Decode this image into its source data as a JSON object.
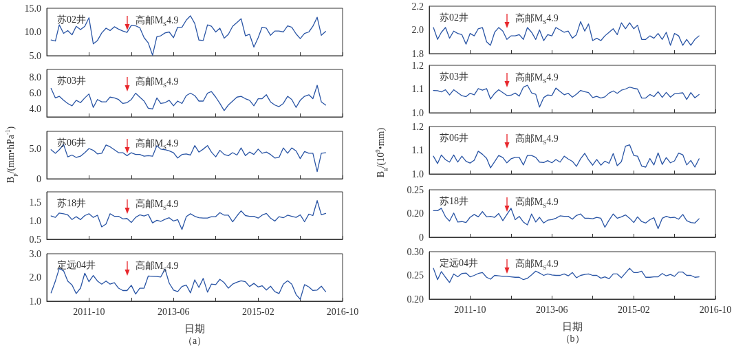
{
  "chart_data": [
    {
      "type": "line",
      "title": "苏02井",
      "marker": "none",
      "line_style": "solid",
      "tick_labels": "y",
      "x": [
        "2011-01",
        "2011-02",
        "2011-03",
        "2011-04",
        "2011-05",
        "2011-06",
        "2011-07",
        "2011-08",
        "2011-09",
        "2011-10",
        "2011-11",
        "2011-12",
        "2012-01",
        "2012-02",
        "2012-03",
        "2012-04",
        "2012-05",
        "2012-06",
        "2012-07",
        "2012-08",
        "2012-09",
        "2012-10",
        "2012-11",
        "2012-12",
        "2013-01",
        "2013-02",
        "2013-03",
        "2013-04",
        "2013-05",
        "2013-06",
        "2013-07",
        "2013-08",
        "2013-09",
        "2013-10",
        "2013-11",
        "2013-12",
        "2014-01",
        "2014-02",
        "2014-03",
        "2014-04",
        "2014-05",
        "2014-06",
        "2014-07",
        "2014-08",
        "2014-09",
        "2014-10",
        "2014-11",
        "2014-12",
        "2015-01",
        "2015-02",
        "2015-03",
        "2015-04",
        "2015-05",
        "2015-06",
        "2015-07",
        "2015-08",
        "2015-09",
        "2015-10",
        "2015-11",
        "2015-12",
        "2016-01",
        "2016-02",
        "2016-03",
        "2016-04",
        "2016-05",
        "2016-06"
      ],
      "series": [
        {
          "color": "#2a55a5",
          "values": [
            8.3,
            8.1,
            11.5,
            9.7,
            10.3,
            9.4,
            11.2,
            10.5,
            11.2,
            13.0,
            7.5,
            8.2,
            9.8,
            10.8,
            10.3,
            11.1,
            10.6,
            10.2,
            9.9,
            11.4,
            11.3,
            10.9,
            8.8,
            7.7,
            5.1,
            9.0,
            9.2,
            9.8,
            10.0,
            8.8,
            11.0,
            11.0,
            12.5,
            13.4,
            11.8,
            8.3,
            8.2,
            11.5,
            11.2,
            10.0,
            10.8,
            8.7,
            9.5,
            11.2,
            12.0,
            12.8,
            9.2,
            9.5,
            6.8,
            8.8,
            11.0,
            10.8,
            9.3,
            10.2,
            10.2,
            10.0,
            11.3,
            11.0,
            9.6,
            8.6,
            9.7,
            10.0,
            11.2,
            13.1,
            9.3,
            10.1
          ]
        }
      ],
      "xlim": [
        "2010-12",
        "2016-10"
      ],
      "xticks": [
        "2011-10",
        {
          "value": "2012-08",
          "label": null
        },
        "2013-06",
        {
          "value": "2014-04",
          "label": null
        },
        "2015-02",
        {
          "value": "2015-12",
          "label": null
        },
        "2016-10"
      ],
      "ylim": [
        5,
        15
      ],
      "yticks": [
        {
          "value": 5,
          "label": "5.0"
        },
        {
          "value": 10,
          "label": "10.0"
        },
        {
          "value": 15,
          "label": "15.0"
        }
      ],
      "ref_lines": [
        {
          "axis": "x",
          "value": "2012-07",
          "label": "高邮M$_{S}$4.9",
          "color": "#e8262b"
        }
      ]
    },
    {
      "type": "line",
      "title": "苏03井",
      "marker": "none",
      "line_style": "solid",
      "tick_labels": "y",
      "x": [
        "2011-01",
        "2011-02",
        "2011-03",
        "2011-04",
        "2011-05",
        "2011-06",
        "2011-07",
        "2011-08",
        "2011-09",
        "2011-10",
        "2011-11",
        "2011-12",
        "2012-01",
        "2012-02",
        "2012-03",
        "2012-04",
        "2012-05",
        "2012-06",
        "2012-07",
        "2012-08",
        "2012-09",
        "2012-10",
        "2012-11",
        "2012-12",
        "2013-01",
        "2013-02",
        "2013-03",
        "2013-04",
        "2013-05",
        "2013-06",
        "2013-07",
        "2013-08",
        "2013-09",
        "2013-10",
        "2013-11",
        "2013-12",
        "2014-01",
        "2014-02",
        "2014-03",
        "2014-04",
        "2014-05",
        "2014-06",
        "2014-07",
        "2014-08",
        "2014-09",
        "2014-10",
        "2014-11",
        "2014-12",
        "2015-01",
        "2015-02",
        "2015-03",
        "2015-04",
        "2015-05",
        "2015-06",
        "2015-07",
        "2015-08",
        "2015-09",
        "2015-10",
        "2015-11",
        "2015-12",
        "2016-01",
        "2016-02",
        "2016-03",
        "2016-04",
        "2016-05",
        "2016-06"
      ],
      "series": [
        {
          "color": "#2a55a5",
          "values": [
            6.6,
            5.4,
            5.6,
            5.1,
            4.7,
            4.4,
            5.1,
            4.8,
            5.4,
            5.9,
            4.2,
            5.2,
            4.9,
            4.9,
            5.5,
            5.4,
            5.2,
            4.7,
            4.8,
            5.2,
            6.0,
            5.5,
            5.0,
            4.1,
            4.0,
            5.4,
            4.7,
            4.8,
            5.1,
            4.4,
            5.0,
            4.7,
            5.7,
            6.0,
            5.7,
            5.0,
            5.0,
            6.0,
            6.2,
            5.5,
            4.7,
            3.8,
            4.5,
            5.0,
            5.5,
            5.6,
            5.3,
            5.1,
            4.4,
            5.3,
            5.3,
            5.8,
            4.9,
            4.5,
            4.3,
            4.7,
            5.6,
            5.2,
            4.2,
            5.1,
            5.6,
            5.8,
            5.3,
            7.0,
            4.9,
            4.5
          ]
        }
      ],
      "xlim": [
        "2010-12",
        "2016-10"
      ],
      "xticks": [
        "2011-10",
        {
          "value": "2012-08",
          "label": null
        },
        "2013-06",
        {
          "value": "2014-04",
          "label": null
        },
        "2015-02",
        {
          "value": "2015-12",
          "label": null
        },
        "2016-10"
      ],
      "ylim": [
        3,
        9
      ],
      "yticks": [
        {
          "value": 4,
          "label": "4.0"
        },
        {
          "value": 6,
          "label": "6.0"
        },
        {
          "value": 8,
          "label": "8.0"
        }
      ],
      "ref_lines": [
        {
          "axis": "x",
          "value": "2012-07",
          "label": "高邮M$_{S}$4.9",
          "color": "#e8262b"
        }
      ]
    },
    {
      "type": "line",
      "title": "苏06井",
      "ylabel": "B$_{p}$/(mm•hPa$^{-1}$)",
      "marker": "none",
      "line_style": "solid",
      "tick_labels": "y",
      "x": [
        "2011-01",
        "2011-02",
        "2011-03",
        "2011-04",
        "2011-05",
        "2011-06",
        "2011-07",
        "2011-08",
        "2011-09",
        "2011-10",
        "2011-11",
        "2011-12",
        "2012-01",
        "2012-02",
        "2012-03",
        "2012-04",
        "2012-05",
        "2012-06",
        "2012-07",
        "2012-08",
        "2012-09",
        "2012-10",
        "2012-11",
        "2012-12",
        "2013-01",
        "2013-02",
        "2013-03",
        "2013-04",
        "2013-05",
        "2013-06",
        "2013-07",
        "2013-08",
        "2013-09",
        "2013-10",
        "2013-11",
        "2013-12",
        "2014-01",
        "2014-02",
        "2014-03",
        "2014-04",
        "2014-05",
        "2014-06",
        "2014-07",
        "2014-08",
        "2014-09",
        "2014-10",
        "2014-11",
        "2014-12",
        "2015-01",
        "2015-02",
        "2015-03",
        "2015-04",
        "2015-05",
        "2015-06",
        "2015-07",
        "2015-08",
        "2015-09",
        "2015-10",
        "2015-11",
        "2015-12",
        "2016-01",
        "2016-02",
        "2016-03",
        "2016-04",
        "2016-05",
        "2016-06"
      ],
      "series": [
        {
          "color": "#2a55a5",
          "values": [
            4.9,
            4.3,
            4.9,
            5.8,
            3.7,
            4.0,
            3.6,
            3.8,
            4.4,
            5.1,
            4.8,
            4.2,
            4.3,
            5.7,
            5.4,
            4.9,
            4.4,
            4.4,
            3.9,
            4.4,
            4.1,
            4.1,
            3.8,
            3.9,
            3.8,
            5.6,
            5.0,
            4.9,
            4.7,
            4.4,
            3.5,
            4.1,
            4.2,
            4.0,
            5.6,
            4.5,
            5.0,
            5.6,
            4.5,
            3.7,
            4.8,
            4.1,
            3.9,
            4.4,
            4.0,
            5.2,
            3.9,
            4.5,
            4.1,
            5.0,
            4.3,
            4.5,
            4.1,
            3.5,
            3.6,
            5.2,
            4.3,
            5.2,
            4.7,
            3.4,
            4.6,
            4.3,
            4.3,
            1.2,
            4.3,
            4.4
          ]
        }
      ],
      "xlim": [
        "2010-12",
        "2016-10"
      ],
      "xticks": [
        "2011-10",
        {
          "value": "2012-08",
          "label": null
        },
        "2013-06",
        {
          "value": "2014-04",
          "label": null
        },
        "2015-02",
        {
          "value": "2015-12",
          "label": null
        },
        "2016-10"
      ],
      "ylim": [
        0,
        8
      ],
      "yticks": [
        0,
        {
          "value": 5,
          "label": "5.0"
        }
      ],
      "ref_lines": [
        {
          "axis": "x",
          "value": "2012-07",
          "label": "高邮M$_{S}$4.9",
          "color": "#e8262b"
        }
      ]
    },
    {
      "type": "line",
      "title": "苏18井",
      "marker": "none",
      "line_style": "solid",
      "tick_labels": "y",
      "x": [
        "2011-01",
        "2011-02",
        "2011-03",
        "2011-04",
        "2011-05",
        "2011-06",
        "2011-07",
        "2011-08",
        "2011-09",
        "2011-10",
        "2011-11",
        "2011-12",
        "2012-01",
        "2012-02",
        "2012-03",
        "2012-04",
        "2012-05",
        "2012-06",
        "2012-07",
        "2012-08",
        "2012-09",
        "2012-10",
        "2012-11",
        "2012-12",
        "2013-01",
        "2013-02",
        "2013-03",
        "2013-04",
        "2013-05",
        "2013-06",
        "2013-07",
        "2013-08",
        "2013-09",
        "2013-10",
        "2013-11",
        "2013-12",
        "2014-01",
        "2014-02",
        "2014-03",
        "2014-04",
        "2014-05",
        "2014-06",
        "2014-07",
        "2014-08",
        "2014-09",
        "2014-10",
        "2014-11",
        "2014-12",
        "2015-01",
        "2015-02",
        "2015-03",
        "2015-04",
        "2015-05",
        "2015-06",
        "2015-07",
        "2015-08",
        "2015-09",
        "2015-10",
        "2015-11",
        "2015-12",
        "2016-01",
        "2016-02",
        "2016-03",
        "2016-04",
        "2016-05",
        "2016-06"
      ],
      "series": [
        {
          "color": "#2a55a5",
          "values": [
            1.14,
            1.1,
            1.22,
            1.2,
            1.17,
            1.04,
            1.12,
            1.04,
            1.15,
            1.2,
            1.1,
            1.16,
            0.84,
            0.92,
            1.2,
            1.13,
            1.13,
            1.06,
            1.07,
            0.96,
            1.1,
            1.17,
            1.14,
            1.18,
            0.95,
            1.02,
            0.99,
            1.05,
            1.09,
            1.0,
            1.04,
            0.77,
            1.12,
            1.2,
            1.13,
            1.09,
            1.08,
            1.08,
            1.12,
            1.12,
            1.23,
            1.16,
            1.16,
            0.98,
            1.14,
            1.28,
            1.15,
            1.13,
            1.13,
            1.08,
            1.16,
            1.21,
            1.08,
            1.0,
            1.12,
            1.09,
            1.16,
            1.13,
            1.1,
            1.17,
            0.98,
            1.19,
            1.15,
            1.56,
            1.17,
            1.21
          ]
        }
      ],
      "xlim": [
        "2010-12",
        "2016-10"
      ],
      "xticks": [
        "2011-10",
        {
          "value": "2012-08",
          "label": null
        },
        "2013-06",
        {
          "value": "2014-04",
          "label": null
        },
        "2015-02",
        {
          "value": "2015-12",
          "label": null
        },
        "2016-10"
      ],
      "ylim": [
        0.5,
        1.8
      ],
      "yticks": [
        0.5,
        {
          "value": 1,
          "label": "1.0"
        },
        1.5
      ],
      "ref_lines": [
        {
          "axis": "x",
          "value": "2012-07",
          "label": "高邮M$_{S}$4.9",
          "color": "#e8262b"
        }
      ]
    },
    {
      "type": "line",
      "title": "定远04井",
      "xlabel": "日期",
      "marker": "none",
      "line_style": "solid",
      "x": [
        "2011-01",
        "2011-02",
        "2011-03",
        "2011-04",
        "2011-05",
        "2011-06",
        "2011-07",
        "2011-08",
        "2011-09",
        "2011-10",
        "2011-11",
        "2011-12",
        "2012-01",
        "2012-02",
        "2012-03",
        "2012-04",
        "2012-05",
        "2012-06",
        "2012-07",
        "2012-08",
        "2012-09",
        "2012-10",
        "2012-11",
        "2012-12",
        "2013-01",
        "2013-02",
        "2013-03",
        "2013-04",
        "2013-05",
        "2013-06",
        "2013-07",
        "2013-08",
        "2013-09",
        "2013-10",
        "2013-11",
        "2013-12",
        "2014-01",
        "2014-02",
        "2014-03",
        "2014-04",
        "2014-05",
        "2014-06",
        "2014-07",
        "2014-08",
        "2014-09",
        "2014-10",
        "2014-11",
        "2014-12",
        "2015-01",
        "2015-02",
        "2015-03",
        "2015-04",
        "2015-05",
        "2015-06",
        "2015-07",
        "2015-08",
        "2015-09",
        "2015-10",
        "2015-11",
        "2015-12",
        "2016-01",
        "2016-02",
        "2016-03",
        "2016-04",
        "2016-05",
        "2016-06"
      ],
      "series": [
        {
          "color": "#2a55a5",
          "values": [
            1.35,
            1.85,
            2.38,
            2.28,
            1.85,
            1.68,
            1.32,
            1.55,
            2.18,
            1.82,
            2.08,
            1.85,
            1.72,
            1.85,
            1.72,
            1.78,
            1.55,
            1.45,
            1.45,
            1.67,
            1.3,
            1.55,
            1.55,
            2.06,
            2.05,
            2.04,
            2.02,
            2.35,
            1.76,
            1.47,
            1.4,
            1.62,
            1.68,
            1.35,
            1.9,
            1.58,
            1.96,
            1.38,
            1.72,
            1.7,
            1.92,
            1.78,
            1.55,
            1.72,
            1.8,
            1.86,
            1.82,
            1.62,
            1.75,
            1.6,
            1.65,
            1.47,
            1.63,
            1.4,
            1.32,
            1.72,
            1.86,
            1.72,
            1.28,
            1.08,
            1.7,
            1.6,
            1.45,
            1.47,
            1.63,
            1.4
          ]
        }
      ],
      "xlim": [
        "2010-12",
        "2016-10"
      ],
      "xticks": [
        "2011-10",
        {
          "value": "2012-08",
          "label": null
        },
        "2013-06",
        {
          "value": "2014-04",
          "label": null
        },
        "2015-02",
        {
          "value": "2015-12",
          "label": null
        },
        "2016-10"
      ],
      "ylim": [
        1,
        3
      ],
      "yticks": [
        {
          "value": 1,
          "label": "1.0"
        },
        {
          "value": 2,
          "label": "2.0"
        },
        {
          "value": 3,
          "label": "3.0"
        }
      ],
      "ref_lines": [
        {
          "axis": "x",
          "value": "2012-07",
          "label": "高邮M$_{S}$4.9",
          "color": "#e8262b"
        }
      ],
      "annotations": [
        "（a）"
      ]
    },
    {
      "type": "line",
      "title": "苏02井",
      "marker": "none",
      "line_style": "solid",
      "tick_labels": "y",
      "x": [
        "2011-01",
        "2011-02",
        "2011-03",
        "2011-04",
        "2011-05",
        "2011-06",
        "2011-07",
        "2011-08",
        "2011-09",
        "2011-10",
        "2011-11",
        "2011-12",
        "2012-01",
        "2012-02",
        "2012-03",
        "2012-04",
        "2012-05",
        "2012-06",
        "2012-07",
        "2012-08",
        "2012-09",
        "2012-10",
        "2012-11",
        "2012-12",
        "2013-01",
        "2013-02",
        "2013-03",
        "2013-04",
        "2013-05",
        "2013-06",
        "2013-07",
        "2013-08",
        "2013-09",
        "2013-10",
        "2013-11",
        "2013-12",
        "2014-01",
        "2014-02",
        "2014-03",
        "2014-04",
        "2014-05",
        "2014-06",
        "2014-07",
        "2014-08",
        "2014-09",
        "2014-10",
        "2014-11",
        "2014-12",
        "2015-01",
        "2015-02",
        "2015-03",
        "2015-04",
        "2015-05",
        "2015-06",
        "2015-07",
        "2015-08",
        "2015-09",
        "2015-10",
        "2015-11",
        "2015-12",
        "2016-01",
        "2016-02",
        "2016-03",
        "2016-04",
        "2016-05",
        "2016-06"
      ],
      "series": [
        {
          "color": "#2a55a5",
          "values": [
            2.02,
            1.92,
            1.98,
            2.02,
            1.93,
            1.99,
            1.97,
            1.96,
            1.88,
            1.97,
            1.95,
            2.01,
            2.02,
            1.9,
            1.87,
            1.98,
            2.02,
            1.99,
            1.92,
            1.95,
            1.95,
            1.96,
            1.92,
            2.02,
            1.98,
            1.92,
            2.0,
            1.91,
            1.96,
            1.95,
            2.02,
            2.0,
            1.98,
            1.99,
            1.93,
            1.96,
            2.07,
            1.99,
            2.05,
            1.91,
            1.93,
            1.91,
            1.95,
            1.98,
            2.01,
            1.96,
            2.06,
            2.01,
            2.06,
            2.01,
            2.04,
            1.92,
            1.92,
            1.95,
            1.93,
            1.97,
            1.92,
            1.98,
            1.87,
            1.97,
            1.95,
            1.87,
            1.92,
            1.87,
            1.92,
            1.95
          ]
        }
      ],
      "xlim": [
        "2010-12",
        "2016-10"
      ],
      "xticks": [
        "2011-10",
        {
          "value": "2012-08",
          "label": null
        },
        "2013-06",
        {
          "value": "2014-04",
          "label": null
        },
        "2015-02",
        {
          "value": "2015-12",
          "label": null
        },
        "2016-10"
      ],
      "ylim": [
        1.8,
        2.2
      ],
      "yticks": [
        1.8,
        {
          "value": 2,
          "label": "2.0"
        },
        2.2
      ],
      "ref_lines": [
        {
          "axis": "x",
          "value": "2012-07",
          "label": "高邮M$_{S}$4.9",
          "color": "#e8262b"
        }
      ]
    },
    {
      "type": "line",
      "title": "苏03井",
      "marker": "none",
      "line_style": "solid",
      "tick_labels": "y",
      "x": [
        "2011-01",
        "2011-02",
        "2011-03",
        "2011-04",
        "2011-05",
        "2011-06",
        "2011-07",
        "2011-08",
        "2011-09",
        "2011-10",
        "2011-11",
        "2011-12",
        "2012-01",
        "2012-02",
        "2012-03",
        "2012-04",
        "2012-05",
        "2012-06",
        "2012-07",
        "2012-08",
        "2012-09",
        "2012-10",
        "2012-11",
        "2012-12",
        "2013-01",
        "2013-02",
        "2013-03",
        "2013-04",
        "2013-05",
        "2013-06",
        "2013-07",
        "2013-08",
        "2013-09",
        "2013-10",
        "2013-11",
        "2013-12",
        "2014-01",
        "2014-02",
        "2014-03",
        "2014-04",
        "2014-05",
        "2014-06",
        "2014-07",
        "2014-08",
        "2014-09",
        "2014-10",
        "2014-11",
        "2014-12",
        "2015-01",
        "2015-02",
        "2015-03",
        "2015-04",
        "2015-05",
        "2015-06",
        "2015-07",
        "2015-08",
        "2015-09",
        "2015-10",
        "2015-11",
        "2015-12",
        "2016-01",
        "2016-02",
        "2016-03",
        "2016-04",
        "2016-05",
        "2016-06"
      ],
      "series": [
        {
          "color": "#2a55a5",
          "values": [
            1.094,
            1.093,
            1.088,
            1.097,
            1.075,
            1.097,
            1.085,
            1.072,
            1.068,
            1.082,
            1.076,
            1.102,
            1.095,
            1.102,
            1.058,
            1.082,
            1.097,
            1.085,
            1.073,
            1.074,
            1.083,
            1.07,
            1.108,
            1.116,
            1.084,
            1.078,
            1.024,
            1.064,
            1.075,
            1.073,
            1.104,
            1.09,
            1.076,
            1.082,
            1.066,
            1.078,
            1.094,
            1.089,
            1.085,
            1.064,
            1.069,
            1.062,
            1.067,
            1.083,
            1.092,
            1.082,
            1.095,
            1.1,
            1.108,
            1.103,
            1.1,
            1.062,
            1.062,
            1.077,
            1.068,
            1.089,
            1.065,
            1.086,
            1.066,
            1.08,
            1.082,
            1.084,
            1.056,
            1.085,
            1.063,
            1.077
          ]
        }
      ],
      "xlim": [
        "2010-12",
        "2016-10"
      ],
      "xticks": [
        "2011-10",
        {
          "value": "2012-08",
          "label": null
        },
        "2013-06",
        {
          "value": "2014-04",
          "label": null
        },
        "2015-02",
        {
          "value": "2015-12",
          "label": null
        },
        "2016-10"
      ],
      "ylim": [
        1.0,
        1.2
      ],
      "yticks": [
        {
          "value": 1,
          "label": "1.0"
        },
        1.1,
        1.2
      ],
      "ref_lines": [
        {
          "axis": "x",
          "value": "2012-07",
          "label": "高邮M$_{S}$4.9",
          "color": "#e8262b"
        }
      ]
    },
    {
      "type": "line",
      "title": "苏06井",
      "ylabel": "B$_{g}$/(10$^{9}$•mm)",
      "marker": "none",
      "line_style": "solid",
      "tick_labels": "y",
      "x": [
        "2011-01",
        "2011-02",
        "2011-03",
        "2011-04",
        "2011-05",
        "2011-06",
        "2011-07",
        "2011-08",
        "2011-09",
        "2011-10",
        "2011-11",
        "2011-12",
        "2012-01",
        "2012-02",
        "2012-03",
        "2012-04",
        "2012-05",
        "2012-06",
        "2012-07",
        "2012-08",
        "2012-09",
        "2012-10",
        "2012-11",
        "2012-12",
        "2013-01",
        "2013-02",
        "2013-03",
        "2013-04",
        "2013-05",
        "2013-06",
        "2013-07",
        "2013-08",
        "2013-09",
        "2013-10",
        "2013-11",
        "2013-12",
        "2014-01",
        "2014-02",
        "2014-03",
        "2014-04",
        "2014-05",
        "2014-06",
        "2014-07",
        "2014-08",
        "2014-09",
        "2014-10",
        "2014-11",
        "2014-12",
        "2015-01",
        "2015-02",
        "2015-03",
        "2015-04",
        "2015-05",
        "2015-06",
        "2015-07",
        "2015-08",
        "2015-09",
        "2015-10",
        "2015-11",
        "2015-12",
        "2016-01",
        "2016-02",
        "2016-03",
        "2016-04",
        "2016-05",
        "2016-06"
      ],
      "series": [
        {
          "color": "#2a55a5",
          "values": [
            1.075,
            1.044,
            1.08,
            1.06,
            1.05,
            1.08,
            1.05,
            1.075,
            1.053,
            1.046,
            1.058,
            1.096,
            1.083,
            1.066,
            1.026,
            1.052,
            1.078,
            1.069,
            1.047,
            1.064,
            1.07,
            1.07,
            1.038,
            1.078,
            1.078,
            1.07,
            1.05,
            1.048,
            1.056,
            1.047,
            1.061,
            1.05,
            1.075,
            1.063,
            1.053,
            1.032,
            1.064,
            1.087,
            1.06,
            1.037,
            1.061,
            1.037,
            1.054,
            1.045,
            1.086,
            1.035,
            1.052,
            1.117,
            1.123,
            1.078,
            1.075,
            1.033,
            1.029,
            1.065,
            1.038,
            1.089,
            1.04,
            1.069,
            1.047,
            1.055,
            1.088,
            1.081,
            1.038,
            1.057,
            1.029,
            1.064
          ]
        }
      ],
      "xlim": [
        "2010-12",
        "2016-10"
      ],
      "xticks": [
        "2011-10",
        {
          "value": "2012-08",
          "label": null
        },
        "2013-06",
        {
          "value": "2014-04",
          "label": null
        },
        "2015-02",
        {
          "value": "2015-12",
          "label": null
        },
        "2016-10"
      ],
      "ylim": [
        1.0,
        1.2
      ],
      "yticks": [
        {
          "value": 1,
          "label": "1.0"
        },
        1.1,
        1.2
      ],
      "ref_lines": [
        {
          "axis": "x",
          "value": "2012-07",
          "label": "高邮M$_{S}$4.9",
          "color": "#e8262b"
        }
      ]
    },
    {
      "type": "line",
      "title": "苏18井",
      "marker": "none",
      "line_style": "solid",
      "tick_labels": "y",
      "x": [
        "2011-01",
        "2011-02",
        "2011-03",
        "2011-04",
        "2011-05",
        "2011-06",
        "2011-07",
        "2011-08",
        "2011-09",
        "2011-10",
        "2011-11",
        "2011-12",
        "2012-01",
        "2012-02",
        "2012-03",
        "2012-04",
        "2012-05",
        "2012-06",
        "2012-07",
        "2012-08",
        "2012-09",
        "2012-10",
        "2012-11",
        "2012-12",
        "2013-01",
        "2013-02",
        "2013-03",
        "2013-04",
        "2013-05",
        "2013-06",
        "2013-07",
        "2013-08",
        "2013-09",
        "2013-10",
        "2013-11",
        "2013-12",
        "2014-01",
        "2014-02",
        "2014-03",
        "2014-04",
        "2014-05",
        "2014-06",
        "2014-07",
        "2014-08",
        "2014-09",
        "2014-10",
        "2014-11",
        "2014-12",
        "2015-01",
        "2015-02",
        "2015-03",
        "2015-04",
        "2015-05",
        "2015-06",
        "2015-07",
        "2015-08",
        "2015-09",
        "2015-10",
        "2015-11",
        "2015-12",
        "2016-01",
        "2016-02",
        "2016-03",
        "2016-04",
        "2016-05",
        "2016-06"
      ],
      "series": [
        {
          "color": "#2a55a5",
          "values": [
            0.206,
            0.206,
            0.211,
            0.193,
            0.184,
            0.201,
            0.182,
            0.183,
            0.181,
            0.192,
            0.198,
            0.193,
            0.204,
            0.193,
            0.194,
            0.192,
            0.2,
            0.185,
            0.198,
            0.211,
            0.187,
            0.194,
            0.182,
            0.176,
            0.199,
            0.182,
            0.192,
            0.18,
            0.186,
            0.187,
            0.19,
            0.195,
            0.194,
            0.194,
            0.188,
            0.196,
            0.199,
            0.19,
            0.19,
            0.189,
            0.192,
            0.19,
            0.171,
            0.186,
            0.199,
            0.19,
            0.193,
            0.197,
            0.19,
            0.181,
            0.193,
            0.183,
            0.18,
            0.187,
            0.191,
            0.168,
            0.19,
            0.194,
            0.191,
            0.192,
            0.188,
            0.198,
            0.185,
            0.181,
            0.18,
            0.189
          ]
        }
      ],
      "xlim": [
        "2010-12",
        "2016-10"
      ],
      "xticks": [
        "2011-10",
        {
          "value": "2012-08",
          "label": null
        },
        "2013-06",
        {
          "value": "2014-04",
          "label": null
        },
        "2015-02",
        {
          "value": "2015-12",
          "label": null
        },
        "2016-10"
      ],
      "ylim": [
        0.15,
        0.25
      ],
      "yticks": [
        {
          "value": 0.15,
          "label": "0"
        },
        {
          "value": 0.2,
          "label": "0.20"
        },
        {
          "value": 0.25,
          "label": "0.25"
        }
      ],
      "ref_lines": [
        {
          "axis": "x",
          "value": "2012-07",
          "label": "高邮M$_{S}$4.9",
          "color": "#e8262b"
        }
      ]
    },
    {
      "type": "line",
      "title": "定远04井",
      "xlabel": "日期",
      "marker": "none",
      "line_style": "solid",
      "x": [
        "2011-01",
        "2011-02",
        "2011-03",
        "2011-04",
        "2011-05",
        "2011-06",
        "2011-07",
        "2011-08",
        "2011-09",
        "2011-10",
        "2011-11",
        "2011-12",
        "2012-01",
        "2012-02",
        "2012-03",
        "2012-04",
        "2012-05",
        "2012-06",
        "2012-07",
        "2012-08",
        "2012-09",
        "2012-10",
        "2012-11",
        "2012-12",
        "2013-01",
        "2013-02",
        "2013-03",
        "2013-04",
        "2013-05",
        "2013-06",
        "2013-07",
        "2013-08",
        "2013-09",
        "2013-10",
        "2013-11",
        "2013-12",
        "2014-01",
        "2014-02",
        "2014-03",
        "2014-04",
        "2014-05",
        "2014-06",
        "2014-07",
        "2014-08",
        "2014-09",
        "2014-10",
        "2014-11",
        "2014-12",
        "2015-01",
        "2015-02",
        "2015-03",
        "2015-04",
        "2015-05",
        "2015-06",
        "2015-07",
        "2015-08",
        "2015-09",
        "2015-10",
        "2015-11",
        "2015-12",
        "2016-01",
        "2016-02",
        "2016-03",
        "2016-04",
        "2016-05",
        "2016-06"
      ],
      "series": [
        {
          "color": "#2a55a5",
          "values": [
            0.265,
            0.241,
            0.258,
            0.246,
            0.235,
            0.253,
            0.247,
            0.254,
            0.255,
            0.247,
            0.25,
            0.254,
            0.256,
            0.246,
            0.242,
            0.25,
            0.249,
            0.248,
            0.248,
            0.247,
            0.246,
            0.246,
            0.241,
            0.244,
            0.251,
            0.259,
            0.255,
            0.25,
            0.253,
            0.251,
            0.25,
            0.25,
            0.253,
            0.249,
            0.256,
            0.245,
            0.25,
            0.252,
            0.253,
            0.25,
            0.25,
            0.244,
            0.247,
            0.243,
            0.253,
            0.253,
            0.245,
            0.255,
            0.265,
            0.256,
            0.256,
            0.259,
            0.246,
            0.246,
            0.247,
            0.247,
            0.254,
            0.249,
            0.252,
            0.248,
            0.257,
            0.257,
            0.25,
            0.25,
            0.246,
            0.247
          ]
        }
      ],
      "xlim": [
        "2010-12",
        "2016-10"
      ],
      "xticks": [
        "2011-10",
        {
          "value": "2012-08",
          "label": null
        },
        "2013-06",
        {
          "value": "2014-04",
          "label": null
        },
        "2015-02",
        {
          "value": "2015-12",
          "label": null
        },
        "2016-10"
      ],
      "ylim": [
        0.2,
        0.3
      ],
      "yticks": [
        {
          "value": 0.2,
          "label": "0.20"
        },
        {
          "value": 0.25,
          "label": "0.25"
        },
        {
          "value": 0.3,
          "label": "0.30"
        }
      ],
      "ref_lines": [
        {
          "axis": "x",
          "value": "2012-07",
          "label": "高邮M$_{S}$4.9",
          "color": "#e8262b"
        }
      ],
      "annotations": [
        "（b）"
      ]
    }
  ]
}
